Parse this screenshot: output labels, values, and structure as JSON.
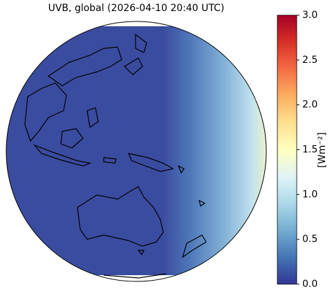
{
  "map": {
    "title": "UVB, global (2026-04-10 20:40 UTC)",
    "colorbar": {
      "label": "[Wm⁻²]",
      "range": [
        0,
        3
      ],
      "ticks": [
        {
          "value": 0,
          "label": "0.0"
        },
        {
          "value": 0.5,
          "label": "0.5"
        },
        {
          "value": 1,
          "label": "1.0"
        },
        {
          "value": 1.5,
          "label": "1.5"
        },
        {
          "value": 2,
          "label": "2.0"
        },
        {
          "value": 2.5,
          "label": "2.5"
        },
        {
          "value": 3,
          "label": "3.0"
        }
      ],
      "colormap": [
        "#313695",
        "#4575b4",
        "#74add1",
        "#abd9e9",
        "#e0f3f8",
        "#ffffbf",
        "#fee090",
        "#fdae61",
        "#f46d43",
        "#d73027",
        "#a50026"
      ]
    }
  }
}
